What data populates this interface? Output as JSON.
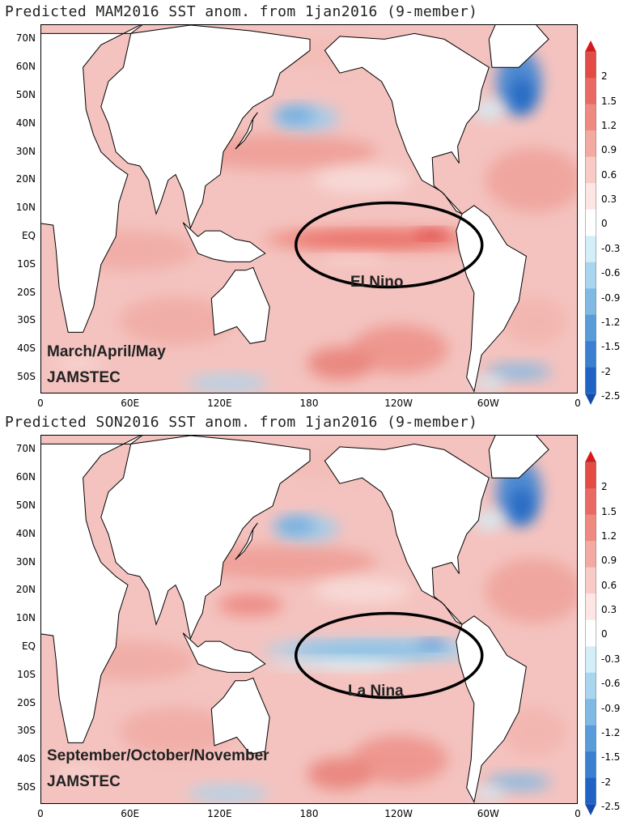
{
  "panels": [
    {
      "title": "Predicted MAM2016 SST anom. from 1jan2016 (9-member)",
      "season_label": "March/April/May",
      "agency_label": "JAMSTEC",
      "callout_label": "El Nino",
      "enso_state": "warm",
      "equatorial_anomaly_sign": 1
    },
    {
      "title": "Predicted SON2016 SST anom. from 1jan2016 (9-member)",
      "season_label": "September/October/November",
      "agency_label": "JAMSTEC",
      "callout_label": "La Nina",
      "enso_state": "cold",
      "equatorial_anomaly_sign": -1
    }
  ],
  "axes": {
    "lat_labels": [
      "70N",
      "60N",
      "50N",
      "40N",
      "30N",
      "20N",
      "10N",
      "EQ",
      "10S",
      "20S",
      "30S",
      "40S",
      "50S"
    ],
    "lon_labels": [
      "0",
      "60E",
      "120E",
      "180",
      "120W",
      "60W",
      "0"
    ]
  },
  "colorbar": {
    "labels": [
      "2",
      "1.5",
      "1.2",
      "0.9",
      "0.6",
      "0.3",
      "0",
      "-0.3",
      "-0.6",
      "-0.9",
      "-1.2",
      "-1.5",
      "-2",
      "-2.5"
    ],
    "colors": [
      "#d7191c",
      "#e34b45",
      "#e96a62",
      "#ee8a80",
      "#f3aaa2",
      "#f8cbc6",
      "#fde6e3",
      "#ffffff",
      "#d4eef7",
      "#a9d6ee",
      "#7fb9e4",
      "#5a9cd9",
      "#3a7fd0",
      "#1f63c4",
      "#124ab0"
    ]
  }
}
